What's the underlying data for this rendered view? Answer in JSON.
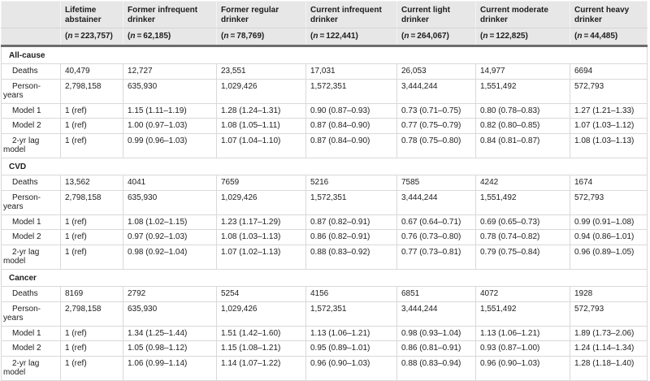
{
  "table": {
    "columns": [
      {
        "label": "Lifetime abstainer",
        "n": "223,757"
      },
      {
        "label": "Former infrequent drinker",
        "n": "62,185"
      },
      {
        "label": "Former regular drinker",
        "n": "78,769"
      },
      {
        "label": "Current infrequent drinker",
        "n": "122,441"
      },
      {
        "label": "Current light drinker",
        "n": "264,067"
      },
      {
        "label": "Current moderate drinker",
        "n": "122,825"
      },
      {
        "label": "Current heavy drinker",
        "n": "44,485"
      }
    ],
    "sections": [
      {
        "title": "All-cause",
        "rows": [
          {
            "label": "Deaths",
            "cells": [
              "40,479",
              "12,727",
              "23,551",
              "17,031",
              "26,053",
              "14,977",
              "6694"
            ]
          },
          {
            "label": "Person-years",
            "cells": [
              "2,798,158",
              "635,930",
              "1,029,426",
              "1,572,351",
              "3,444,244",
              "1,551,492",
              "572,793"
            ]
          },
          {
            "label": "Model 1",
            "cells": [
              "1 (ref)",
              "1.15 (1.11–1.19)",
              "1.28 (1.24–1.31)",
              "0.90 (0.87–0.93)",
              "0.73 (0.71–0.75)",
              "0.80 (0.78–0.83)",
              "1.27 (1.21–1.33)"
            ]
          },
          {
            "label": "Model 2",
            "cells": [
              "1 (ref)",
              "1.00 (0.97–1.03)",
              "1.08 (1.05–1.11)",
              "0.87 (0.84–0.90)",
              "0.77 (0.75–0.79)",
              "0.82 (0.80–0.85)",
              "1.07 (1.03–1.12)"
            ]
          },
          {
            "label": "2-yr lag model",
            "cells": [
              "1 (ref)",
              "0.99 (0.96–1.03)",
              "1.07 (1.04–1.10)",
              "0.87 (0.84–0.90)",
              "0.78 (0.75–0.80)",
              "0.84 (0.81–0.87)",
              "1.08 (1.03–1.13)"
            ]
          }
        ]
      },
      {
        "title": "CVD",
        "rows": [
          {
            "label": "Deaths",
            "cells": [
              "13,562",
              "4041",
              "7659",
              "5216",
              "7585",
              "4242",
              "1674"
            ]
          },
          {
            "label": "Person-years",
            "cells": [
              "2,798,158",
              "635,930",
              "1,029,426",
              "1,572,351",
              "3,444,244",
              "1,551,492",
              "572,793"
            ]
          },
          {
            "label": "Model 1",
            "cells": [
              "1 (ref)",
              "1.08 (1.02–1.15)",
              "1.23 (1.17–1.29)",
              "0.87 (0.82–0.91)",
              "0.67 (0.64–0.71)",
              "0.69 (0.65–0.73)",
              "0.99 (0.91–1.08)"
            ]
          },
          {
            "label": "Model 2",
            "cells": [
              "1 (ref)",
              "0.97 (0.92–1.03)",
              "1.08 (1.03–1.13)",
              "0.86 (0.82–0.91)",
              "0.76 (0.73–0.80)",
              "0.78 (0.74–0.82)",
              "0.94 (0.86–1.01)"
            ]
          },
          {
            "label": "2-yr lag model",
            "cells": [
              "1 (ref)",
              "0.98 (0.92–1.04)",
              "1.07 (1.02–1.13)",
              "0.88 (0.83–0.92)",
              "0.77 (0.73–0.81)",
              "0.79 (0.75–0.84)",
              "0.96 (0.89–1.05)"
            ]
          }
        ]
      },
      {
        "title": "Cancer",
        "rows": [
          {
            "label": "Deaths",
            "cells": [
              "8169",
              "2792",
              "5254",
              "4156",
              "6851",
              "4072",
              "1928"
            ]
          },
          {
            "label": "Person-years",
            "cells": [
              "2,798,158",
              "635,930",
              "1,029,426",
              "1,572,351",
              "3,444,244",
              "1,551,492",
              "572,793"
            ]
          },
          {
            "label": "Model 1",
            "cells": [
              "1 (ref)",
              "1.34 (1.25–1.44)",
              "1.51 (1.42–1.60)",
              "1.13 (1.06–1.21)",
              "0.98 (0.93–1.04)",
              "1.13 (1.06–1.21)",
              "1.89 (1.73–2.06)"
            ]
          },
          {
            "label": "Model 2",
            "cells": [
              "1 (ref)",
              "1.05 (0.98–1.12)",
              "1.15 (1.08–1.21)",
              "0.95 (0.89–1.01)",
              "0.86 (0.81–0.91)",
              "0.93 (0.87–1.00)",
              "1.24 (1.14–1.34)"
            ]
          },
          {
            "label": "2-yr lag model",
            "cells": [
              "1 (ref)",
              "1.06 (0.99–1.14)",
              "1.14 (1.07–1.22)",
              "0.96 (0.90–1.03)",
              "0.88 (0.83–0.94)",
              "0.96 (0.90–1.03)",
              "1.28 (1.18–1.40)"
            ]
          }
        ]
      }
    ],
    "colors": {
      "header_bg": "#e7e7e7",
      "thick_rule": "#6d6d6d",
      "grid_line": "#d9d9d9",
      "text": "#1d1d1d"
    }
  }
}
